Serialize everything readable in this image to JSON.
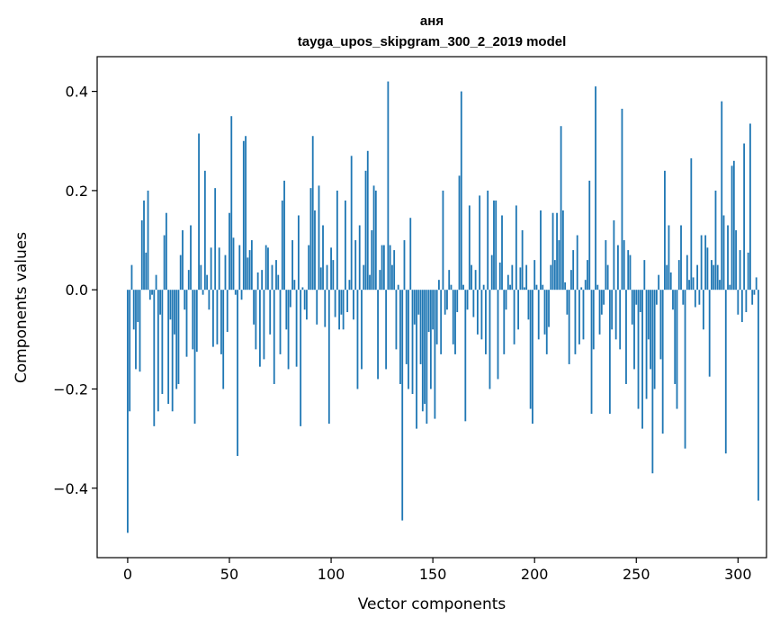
{
  "chart_data": {
    "type": "bar",
    "title_lines": [
      "аня",
      "tayga_upos_skipgram_300_2_2019 model"
    ],
    "xlabel": "Vector components",
    "ylabel": "Components values",
    "xlim": [
      -15,
      314
    ],
    "ylim": [
      -0.54,
      0.47
    ],
    "xticks": [
      {
        "value": 0,
        "label": "0"
      },
      {
        "value": 50,
        "label": "50"
      },
      {
        "value": 100,
        "label": "100"
      },
      {
        "value": 150,
        "label": "150"
      },
      {
        "value": 200,
        "label": "200"
      },
      {
        "value": 250,
        "label": "250"
      },
      {
        "value": 300,
        "label": "300"
      }
    ],
    "yticks": [
      {
        "value": -0.4,
        "label": "−0.4"
      },
      {
        "value": -0.2,
        "label": "−0.2"
      },
      {
        "value": 0.0,
        "label": "0.0"
      },
      {
        "value": 0.2,
        "label": "0.2"
      },
      {
        "value": 0.4,
        "label": "0.4"
      }
    ],
    "bar_color": "#1f77b4",
    "grid": false,
    "values": [
      -0.49,
      -0.245,
      0.05,
      -0.08,
      -0.16,
      -0.065,
      -0.165,
      0.14,
      0.18,
      0.075,
      0.2,
      -0.02,
      -0.01,
      -0.275,
      0.03,
      -0.245,
      -0.05,
      -0.21,
      0.11,
      0.155,
      -0.23,
      -0.06,
      -0.245,
      -0.09,
      -0.2,
      -0.19,
      0.07,
      0.12,
      -0.04,
      -0.135,
      0.04,
      0.13,
      -0.12,
      -0.27,
      -0.125,
      0.315,
      0.05,
      -0.01,
      0.24,
      0.03,
      -0.04,
      0.085,
      -0.115,
      0.205,
      -0.11,
      0.085,
      -0.13,
      -0.2,
      0.07,
      -0.085,
      0.155,
      0.35,
      0.105,
      -0.01,
      -0.335,
      0.09,
      -0.02,
      0.3,
      0.31,
      0.065,
      0.08,
      0.1,
      -0.07,
      -0.12,
      0.035,
      -0.155,
      0.04,
      -0.14,
      0.09,
      0.085,
      -0.09,
      0.05,
      -0.19,
      0.06,
      0.03,
      -0.13,
      0.18,
      0.22,
      -0.08,
      -0.16,
      -0.035,
      0.1,
      0.02,
      -0.155,
      0.15,
      -0.275,
      0.005,
      -0.04,
      -0.06,
      0.09,
      0.205,
      0.31,
      0.16,
      -0.07,
      0.21,
      0.045,
      0.13,
      -0.075,
      0.05,
      -0.27,
      0.085,
      0.06,
      -0.055,
      0.2,
      -0.08,
      -0.05,
      -0.08,
      0.18,
      -0.045,
      0.02,
      0.27,
      -0.06,
      0.1,
      -0.2,
      0.13,
      -0.16,
      0.05,
      0.24,
      0.28,
      0.03,
      0.12,
      0.21,
      0.2,
      -0.18,
      0.04,
      0.09,
      0.09,
      -0.16,
      0.42,
      0.09,
      0.05,
      0.08,
      -0.12,
      0.01,
      -0.19,
      -0.465,
      0.1,
      -0.15,
      -0.2,
      0.145,
      -0.21,
      -0.07,
      -0.28,
      -0.05,
      -0.15,
      -0.245,
      -0.23,
      -0.27,
      -0.085,
      -0.2,
      -0.08,
      -0.26,
      -0.11,
      0.02,
      -0.13,
      0.2,
      -0.05,
      -0.04,
      0.04,
      0.01,
      -0.11,
      -0.13,
      -0.045,
      0.23,
      0.4,
      0.01,
      -0.265,
      -0.04,
      0.17,
      0.05,
      -0.055,
      0.04,
      -0.09,
      0.19,
      -0.1,
      0.01,
      -0.13,
      0.2,
      -0.2,
      0.07,
      0.18,
      0.18,
      -0.18,
      0.055,
      0.15,
      -0.13,
      -0.04,
      0.03,
      0.01,
      0.05,
      -0.11,
      0.17,
      -0.08,
      0.045,
      0.12,
      0.005,
      0.05,
      -0.06,
      -0.24,
      -0.27,
      0.06,
      0.01,
      -0.1,
      0.16,
      0.01,
      -0.09,
      -0.13,
      -0.075,
      0.05,
      0.155,
      0.06,
      0.155,
      0.1,
      0.33,
      0.16,
      0.015,
      -0.05,
      -0.15,
      0.04,
      0.08,
      -0.13,
      0.11,
      -0.11,
      0.005,
      -0.1,
      0.02,
      0.06,
      0.22,
      -0.25,
      -0.12,
      0.41,
      0.01,
      -0.09,
      -0.05,
      -0.03,
      0.1,
      0.05,
      -0.25,
      -0.08,
      0.14,
      -0.1,
      0.09,
      -0.12,
      0.365,
      0.1,
      -0.19,
      0.08,
      0.07,
      -0.07,
      -0.16,
      -0.03,
      -0.24,
      -0.045,
      -0.28,
      0.06,
      -0.22,
      -0.1,
      -0.16,
      -0.37,
      -0.2,
      -0.03,
      0.03,
      -0.14,
      -0.29,
      0.24,
      0.05,
      0.13,
      0.035,
      -0.04,
      -0.19,
      -0.24,
      0.06,
      0.13,
      -0.03,
      -0.32,
      0.07,
      0.02,
      0.265,
      0.025,
      -0.035,
      0.05,
      -0.03,
      0.11,
      -0.08,
      0.11,
      0.085,
      -0.175,
      0.06,
      0.05,
      0.2,
      0.05,
      0.02,
      0.38,
      0.15,
      -0.33,
      0.13,
      0.01,
      0.25,
      0.26,
      0.12,
      -0.05,
      0.08,
      -0.065,
      0.295,
      -0.045,
      0.075,
      0.335,
      -0.03,
      -0.01,
      0.025,
      -0.425
    ]
  }
}
